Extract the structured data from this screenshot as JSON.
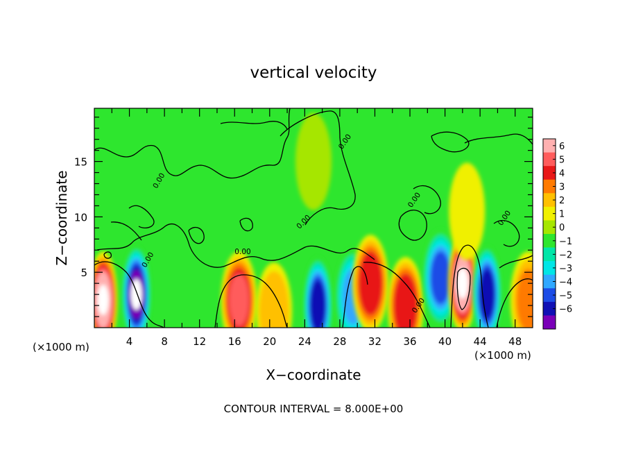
{
  "chart_data": {
    "type": "heatmap",
    "title": "vertical velocity",
    "xlabel": "X−coordinate",
    "ylabel": "Z−coordinate",
    "x_unit": "(×1000 m)",
    "y_unit": "(×1000 m)",
    "xlim": [
      0,
      50
    ],
    "ylim": [
      0,
      19.8
    ],
    "x_ticks": [
      4,
      8,
      12,
      16,
      20,
      24,
      28,
      32,
      36,
      40,
      44,
      48
    ],
    "y_ticks": [
      5,
      10,
      15
    ],
    "colorbar": {
      "labels": [
        "6",
        "5",
        "4",
        "3",
        "2",
        "1",
        "0",
        "−1",
        "−2",
        "−3",
        "−4",
        "−5",
        "−6"
      ],
      "colors": [
        "#ffb0b0",
        "#ff5c5c",
        "#e81818",
        "#ff7a00",
        "#ffc000",
        "#f0f000",
        "#a6e600",
        "#2ee62e",
        "#00e6a8",
        "#00e6e6",
        "#30a8ff",
        "#1c4ce6",
        "#1010b4",
        "#7a00b8"
      ]
    },
    "contour_label": "0.00",
    "footer": "CONTOUR INTERVAL = 8.000E+00",
    "features": [
      {
        "x": 1.0,
        "z": 2.5,
        "w": 6.5
      },
      {
        "x": 4.8,
        "z": 3.0,
        "w": -6.5
      },
      {
        "x": 16.5,
        "z": 2.5,
        "w": 5.0
      },
      {
        "x": 20.5,
        "z": 1.5,
        "w": 2.5
      },
      {
        "x": 25.5,
        "z": 2.0,
        "w": -5.5
      },
      {
        "x": 29.5,
        "z": 2.8,
        "w": -4.0
      },
      {
        "x": 31.5,
        "z": 4.0,
        "w": 4.5
      },
      {
        "x": 35.5,
        "z": 2.0,
        "w": 4.5
      },
      {
        "x": 39.5,
        "z": 4.5,
        "w": -5.0
      },
      {
        "x": 42.0,
        "z": 4.0,
        "w": 7.0
      },
      {
        "x": 44.8,
        "z": 3.0,
        "w": -6.0
      },
      {
        "x": 49.5,
        "z": 2.5,
        "w": 3.0
      },
      {
        "x": 42.5,
        "z": 10.5,
        "w": 1.5
      },
      {
        "x": 25.0,
        "z": 15.0,
        "w": 0.5
      }
    ]
  }
}
